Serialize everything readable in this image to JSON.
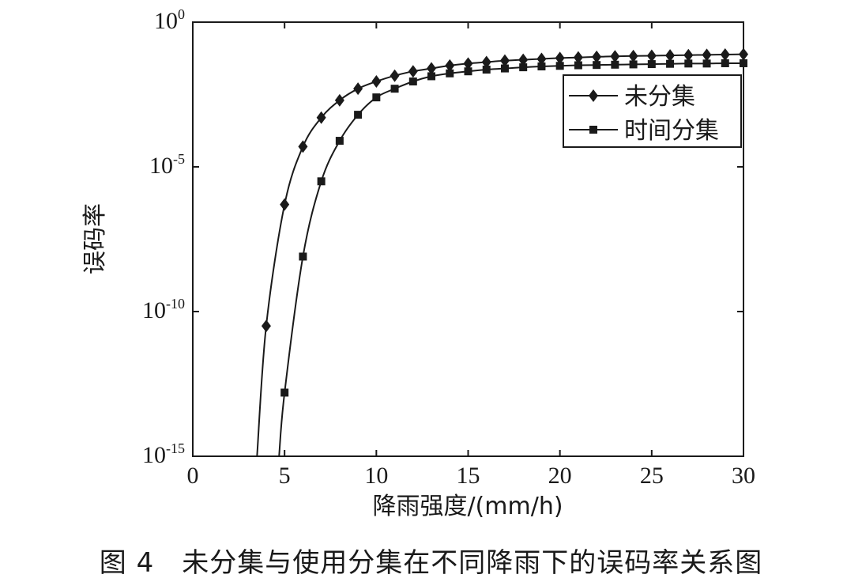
{
  "chart_data": {
    "type": "line",
    "xlabel": "降雨强度/(mm/h)",
    "ylabel": "误码率",
    "xlim": [
      0,
      30
    ],
    "ylim_exponent": [
      -15,
      0
    ],
    "yscale": "log",
    "x_ticks": [
      "0",
      "5",
      "10",
      "15",
      "20",
      "25",
      "30"
    ],
    "y_ticks": [
      {
        "base": "10",
        "exp": "0"
      },
      {
        "base": "10",
        "exp": "-5"
      },
      {
        "base": "10",
        "exp": "-10"
      },
      {
        "base": "10",
        "exp": "-15"
      }
    ],
    "grid": false,
    "legend_position": "top-right",
    "series": [
      {
        "name": "未分集",
        "marker": "diamond",
        "color": "#1a1a1a",
        "line_x": [
          3.5,
          4,
          5,
          6,
          7,
          8,
          9,
          10,
          11,
          12,
          13,
          14,
          15,
          16,
          17,
          18,
          19,
          20,
          21,
          22,
          23,
          24,
          25,
          26,
          27,
          28,
          29,
          30
        ],
        "line_log10_y": [
          -15,
          -10.5,
          -6.3,
          -4.3,
          -3.3,
          -2.7,
          -2.3,
          -2.05,
          -1.85,
          -1.7,
          -1.6,
          -1.5,
          -1.43,
          -1.38,
          -1.33,
          -1.3,
          -1.27,
          -1.24,
          -1.22,
          -1.2,
          -1.18,
          -1.17,
          -1.16,
          -1.15,
          -1.14,
          -1.13,
          -1.12,
          -1.11
        ],
        "marker_x": [
          4,
          5,
          6,
          7,
          8,
          9,
          10,
          11,
          12,
          13,
          14,
          15,
          16,
          17,
          18,
          19,
          20,
          21,
          22,
          23,
          24,
          25,
          26,
          27,
          28,
          29,
          30
        ]
      },
      {
        "name": "时间分集",
        "marker": "square",
        "color": "#1a1a1a",
        "line_x": [
          4.7,
          5,
          6,
          7,
          8,
          9,
          10,
          11,
          12,
          13,
          14,
          15,
          16,
          17,
          18,
          19,
          20,
          21,
          22,
          23,
          24,
          25,
          26,
          27,
          28,
          29,
          30
        ],
        "line_log10_y": [
          -15,
          -12.8,
          -8.1,
          -5.5,
          -4.1,
          -3.2,
          -2.6,
          -2.3,
          -2.05,
          -1.87,
          -1.77,
          -1.7,
          -1.64,
          -1.6,
          -1.56,
          -1.53,
          -1.51,
          -1.49,
          -1.48,
          -1.47,
          -1.46,
          -1.45,
          -1.44,
          -1.43,
          -1.43,
          -1.42,
          -1.42
        ],
        "marker_x": [
          5,
          6,
          7,
          8,
          9,
          10,
          11,
          12,
          13,
          14,
          15,
          16,
          17,
          18,
          19,
          20,
          21,
          22,
          23,
          24,
          25,
          26,
          27,
          28,
          29,
          30
        ]
      }
    ]
  },
  "caption": "图 4　未分集与使用分集在不同降雨下的误码率关系图"
}
